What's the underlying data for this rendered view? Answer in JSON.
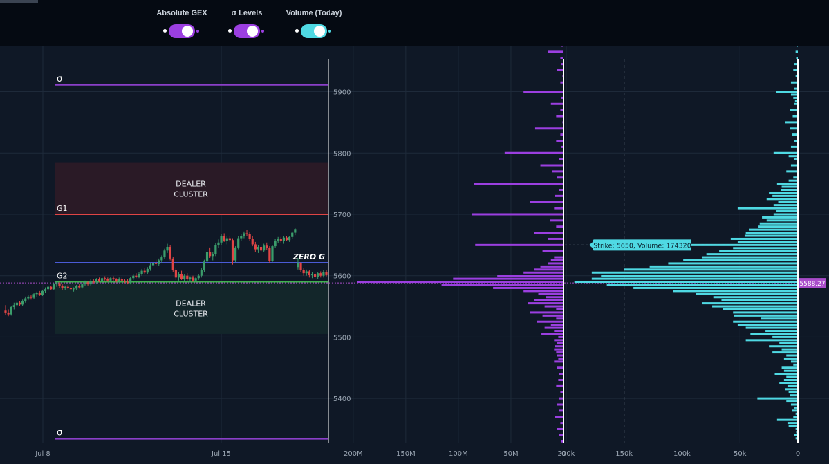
{
  "toggles": [
    {
      "label": "Absolute GEX",
      "color": "#9b3fe0",
      "on": true
    },
    {
      "label": "σ Levels",
      "color": "#9b3fe0",
      "on": true
    },
    {
      "label": "Volume (Today)",
      "color": "#4fd9e3",
      "on": true
    }
  ],
  "colors": {
    "gex": "#9b3fe0",
    "volume": "#4fd9e3",
    "up_candle": "#3b9c6b",
    "down_candle": "#e04545",
    "sigma": "#8a3fc8",
    "g1": "#e04545",
    "g2": "#3fb24f",
    "zero_g": "#4a5bd6",
    "price_marker": "#a94cc9"
  },
  "chart_data": [
    {
      "type": "candlestick",
      "x_ticks": [
        "Jul 8",
        "Jul 15"
      ],
      "price_ticks": [
        5400,
        5500,
        5600,
        5700,
        5800,
        5900
      ],
      "ylim": [
        5328,
        5975
      ],
      "levels": [
        {
          "label": "σ",
          "value": 5911
        },
        {
          "label": "G1",
          "value": 5700
        },
        {
          "label": "ZERO G",
          "value": 5621
        },
        {
          "label": "G2",
          "value": 5590
        },
        {
          "label": "σ",
          "value": 5334
        }
      ],
      "zones": [
        {
          "label": "DEALER\nCLUSTER",
          "from": 5700,
          "to": 5785,
          "kind": "resistance"
        },
        {
          "label": "DEALER\nCLUSTER",
          "from": 5505,
          "to": 5590,
          "kind": "support"
        }
      ],
      "candles": [
        [
          5543,
          5552,
          5536,
          5540
        ],
        [
          5540,
          5545,
          5534,
          5537
        ],
        [
          5537,
          5551,
          5535,
          5549
        ],
        [
          5549,
          5556,
          5545,
          5552
        ],
        [
          5552,
          5560,
          5549,
          5556
        ],
        [
          5556,
          5559,
          5551,
          5553
        ],
        [
          5553,
          5561,
          5551,
          5559
        ],
        [
          5559,
          5566,
          5556,
          5563
        ],
        [
          5563,
          5569,
          5560,
          5566
        ],
        [
          5566,
          5568,
          5561,
          5564
        ],
        [
          5564,
          5572,
          5562,
          5570
        ],
        [
          5570,
          5574,
          5566,
          5572
        ],
        [
          5572,
          5575,
          5567,
          5569
        ],
        [
          5569,
          5577,
          5567,
          5575
        ],
        [
          5575,
          5581,
          5572,
          5578
        ],
        [
          5578,
          5584,
          5575,
          5582
        ],
        [
          5582,
          5583,
          5576,
          5578
        ],
        [
          5578,
          5588,
          5576,
          5586
        ],
        [
          5586,
          5591,
          5582,
          5588
        ],
        [
          5588,
          5590,
          5580,
          5583
        ],
        [
          5583,
          5586,
          5577,
          5580
        ],
        [
          5580,
          5584,
          5576,
          5582
        ],
        [
          5582,
          5585,
          5578,
          5580
        ],
        [
          5580,
          5583,
          5576,
          5578
        ],
        [
          5578,
          5581,
          5574,
          5579
        ],
        [
          5579,
          5585,
          5577,
          5583
        ],
        [
          5583,
          5586,
          5579,
          5581
        ],
        [
          5581,
          5588,
          5579,
          5586
        ],
        [
          5586,
          5592,
          5583,
          5589
        ],
        [
          5589,
          5591,
          5584,
          5586
        ],
        [
          5586,
          5594,
          5584,
          5591
        ],
        [
          5591,
          5595,
          5587,
          5589
        ],
        [
          5589,
          5596,
          5587,
          5594
        ],
        [
          5594,
          5597,
          5589,
          5591
        ],
        [
          5591,
          5598,
          5589,
          5596
        ],
        [
          5596,
          5599,
          5592,
          5594
        ],
        [
          5594,
          5597,
          5590,
          5592
        ],
        [
          5592,
          5598,
          5590,
          5596
        ],
        [
          5596,
          5599,
          5592,
          5594
        ],
        [
          5594,
          5596,
          5589,
          5591
        ],
        [
          5591,
          5597,
          5589,
          5595
        ],
        [
          5595,
          5597,
          5590,
          5592
        ],
        [
          5592,
          5595,
          5588,
          5590
        ],
        [
          5590,
          5594,
          5586,
          5588
        ],
        [
          5588,
          5598,
          5586,
          5596
        ],
        [
          5596,
          5603,
          5593,
          5600
        ],
        [
          5600,
          5604,
          5596,
          5598
        ],
        [
          5598,
          5606,
          5596,
          5603
        ],
        [
          5603,
          5611,
          5600,
          5608
        ],
        [
          5608,
          5612,
          5603,
          5605
        ],
        [
          5605,
          5614,
          5603,
          5611
        ],
        [
          5611,
          5620,
          5608,
          5617
        ],
        [
          5617,
          5624,
          5613,
          5621
        ],
        [
          5621,
          5626,
          5616,
          5619
        ],
        [
          5619,
          5628,
          5616,
          5625
        ],
        [
          5625,
          5633,
          5621,
          5630
        ],
        [
          5630,
          5644,
          5627,
          5641
        ],
        [
          5641,
          5652,
          5637,
          5647
        ],
        [
          5647,
          5650,
          5625,
          5628
        ],
        [
          5628,
          5631,
          5606,
          5609
        ],
        [
          5609,
          5612,
          5593,
          5597
        ],
        [
          5597,
          5606,
          5592,
          5603
        ],
        [
          5603,
          5608,
          5593,
          5595
        ],
        [
          5595,
          5603,
          5591,
          5600
        ],
        [
          5600,
          5604,
          5592,
          5594
        ],
        [
          5594,
          5599,
          5589,
          5597
        ],
        [
          5597,
          5600,
          5590,
          5592
        ],
        [
          5592,
          5598,
          5589,
          5596
        ],
        [
          5596,
          5603,
          5593,
          5600
        ],
        [
          5600,
          5612,
          5597,
          5609
        ],
        [
          5609,
          5626,
          5606,
          5623
        ],
        [
          5623,
          5643,
          5619,
          5639
        ],
        [
          5639,
          5646,
          5629,
          5632
        ],
        [
          5632,
          5638,
          5625,
          5635
        ],
        [
          5635,
          5653,
          5632,
          5650
        ],
        [
          5650,
          5659,
          5645,
          5654
        ],
        [
          5654,
          5668,
          5650,
          5665
        ],
        [
          5665,
          5669,
          5655,
          5657
        ],
        [
          5657,
          5664,
          5651,
          5661
        ],
        [
          5661,
          5665,
          5655,
          5658
        ],
        [
          5658,
          5661,
          5618,
          5625
        ],
        [
          5625,
          5648,
          5622,
          5646
        ],
        [
          5646,
          5664,
          5643,
          5661
        ],
        [
          5661,
          5668,
          5656,
          5664
        ],
        [
          5664,
          5672,
          5661,
          5669
        ],
        [
          5669,
          5675,
          5664,
          5668
        ],
        [
          5668,
          5671,
          5657,
          5660
        ],
        [
          5660,
          5664,
          5648,
          5651
        ],
        [
          5651,
          5655,
          5639,
          5643
        ],
        [
          5643,
          5650,
          5637,
          5647
        ],
        [
          5647,
          5650,
          5638,
          5641
        ],
        [
          5641,
          5652,
          5639,
          5649
        ],
        [
          5649,
          5654,
          5642,
          5645
        ],
        [
          5645,
          5648,
          5620,
          5624
        ],
        [
          5624,
          5650,
          5622,
          5648
        ],
        [
          5648,
          5660,
          5645,
          5657
        ],
        [
          5657,
          5663,
          5653,
          5660
        ],
        [
          5660,
          5663,
          5654,
          5656
        ],
        [
          5656,
          5664,
          5652,
          5662
        ],
        [
          5662,
          5665,
          5656,
          5658
        ],
        [
          5658,
          5665,
          5655,
          5663
        ],
        [
          5663,
          5672,
          5660,
          5670
        ],
        [
          5670,
          5678,
          5666,
          5676
        ],
        [
          5614,
          5629,
          5610,
          5620
        ],
        [
          5620,
          5622,
          5606,
          5609
        ],
        [
          5609,
          5612,
          5600,
          5604
        ],
        [
          5604,
          5610,
          5600,
          5607
        ],
        [
          5607,
          5609,
          5597,
          5601
        ],
        [
          5601,
          5606,
          5596,
          5603
        ],
        [
          5603,
          5605,
          5595,
          5598
        ],
        [
          5598,
          5606,
          5595,
          5604
        ],
        [
          5604,
          5607,
          5597,
          5600
        ],
        [
          5600,
          5609,
          5597,
          5606
        ],
        [
          5606,
          5609,
          5599,
          5602
        ]
      ]
    },
    {
      "type": "bar",
      "orientation": "horizontal",
      "name": "Absolute GEX",
      "price_ticks": [
        5400,
        5500,
        5600,
        5700,
        5800,
        5900
      ],
      "xlim": [
        215000000,
        0
      ],
      "x_ticks": [
        "200M",
        "150M",
        "100M",
        "50M",
        "0"
      ],
      "strikes": [
        5975,
        5965,
        5955,
        5945,
        5935,
        5925,
        5915,
        5900,
        5890,
        5880,
        5870,
        5860,
        5850,
        5840,
        5830,
        5820,
        5810,
        5800,
        5790,
        5780,
        5770,
        5760,
        5750,
        5740,
        5730,
        5720,
        5710,
        5700,
        5690,
        5680,
        5670,
        5660,
        5650,
        5640,
        5630,
        5625,
        5620,
        5615,
        5610,
        5605,
        5600,
        5595,
        5590,
        5585,
        5580,
        5575,
        5570,
        5565,
        5560,
        5555,
        5550,
        5545,
        5540,
        5535,
        5530,
        5525,
        5520,
        5515,
        5510,
        5505,
        5500,
        5495,
        5490,
        5485,
        5480,
        5475,
        5470,
        5465,
        5460,
        5450,
        5440,
        5430,
        5420,
        5410,
        5400,
        5390,
        5380,
        5370,
        5360,
        5350,
        5340,
        5330
      ],
      "values": [
        2000000,
        15000000,
        3000000,
        2000000,
        6000000,
        1000000,
        3000000,
        38000000,
        2000000,
        12000000,
        3000000,
        7000000,
        1000000,
        27000000,
        3000000,
        7000000,
        2000000,
        56000000,
        4000000,
        22000000,
        11000000,
        6000000,
        85000000,
        4000000,
        8000000,
        32000000,
        9000000,
        87000000,
        13000000,
        7000000,
        28000000,
        15000000,
        84000000,
        20000000,
        9000000,
        12000000,
        15000000,
        22000000,
        28000000,
        38000000,
        63000000,
        105000000,
        196000000,
        116000000,
        67000000,
        38000000,
        24000000,
        17000000,
        28000000,
        34000000,
        18000000,
        7000000,
        32000000,
        20000000,
        7000000,
        25000000,
        12000000,
        18000000,
        9000000,
        21000000,
        5000000,
        9000000,
        6000000,
        8000000,
        9000000,
        7000000,
        6000000,
        5000000,
        9000000,
        6000000,
        4000000,
        5000000,
        7000000,
        3000000,
        4000000,
        6000000,
        4000000,
        8000000,
        3000000,
        6000000,
        4000000,
        2000000
      ],
      "current_price": 5588.27
    },
    {
      "type": "bar",
      "orientation": "horizontal",
      "name": "Volume (Today)",
      "price_ticks": [
        5400,
        5500,
        5600,
        5700,
        5800,
        5900
      ],
      "xlim": [
        200000,
        0
      ],
      "x_ticks": [
        "200k",
        "150k",
        "100k",
        "50k",
        "0"
      ],
      "strikes": [
        5975,
        5965,
        5955,
        5945,
        5935,
        5925,
        5915,
        5905,
        5900,
        5895,
        5890,
        5885,
        5880,
        5870,
        5860,
        5850,
        5840,
        5830,
        5820,
        5810,
        5800,
        5795,
        5790,
        5780,
        5770,
        5760,
        5755,
        5750,
        5745,
        5740,
        5735,
        5730,
        5725,
        5720,
        5715,
        5710,
        5705,
        5700,
        5695,
        5690,
        5685,
        5680,
        5675,
        5670,
        5665,
        5660,
        5655,
        5650,
        5645,
        5640,
        5635,
        5630,
        5625,
        5620,
        5615,
        5610,
        5605,
        5600,
        5595,
        5590,
        5585,
        5580,
        5575,
        5570,
        5565,
        5560,
        5555,
        5550,
        5545,
        5540,
        5535,
        5530,
        5525,
        5520,
        5515,
        5510,
        5505,
        5500,
        5495,
        5490,
        5485,
        5480,
        5475,
        5470,
        5465,
        5460,
        5455,
        5450,
        5445,
        5440,
        5435,
        5430,
        5425,
        5420,
        5415,
        5410,
        5405,
        5400,
        5395,
        5390,
        5385,
        5380,
        5375,
        5370,
        5365,
        5360,
        5355,
        5350,
        5345,
        5340,
        5335,
        5330
      ],
      "values": [
        1000,
        2000,
        1500,
        3000,
        4000,
        2000,
        6000,
        3000,
        19000,
        6000,
        4000,
        2500,
        3000,
        7000,
        4500,
        11000,
        7000,
        5000,
        3000,
        6000,
        21000,
        8000,
        3000,
        6000,
        10000,
        4000,
        8000,
        18000,
        14000,
        14500,
        25000,
        22000,
        27000,
        17000,
        21000,
        52000,
        19000,
        21000,
        31000,
        27000,
        33000,
        34000,
        42000,
        45000,
        46000,
        58000,
        52000,
        174000,
        56000,
        68000,
        79000,
        83000,
        99000,
        112000,
        128000,
        150000,
        178000,
        170000,
        178000,
        193000,
        165000,
        142000,
        108000,
        88000,
        73000,
        66000,
        83000,
        74000,
        65000,
        56000,
        55000,
        32000,
        56000,
        52000,
        45000,
        28000,
        41000,
        22000,
        45000,
        16000,
        25000,
        14000,
        22000,
        10000,
        12000,
        6000,
        4000,
        14000,
        12000,
        20000,
        10000,
        12000,
        16000,
        9000,
        11000,
        8000,
        7000,
        35000,
        10000,
        6000,
        3000,
        5000,
        2000,
        4000,
        18000,
        9000,
        8000,
        2000,
        1500,
        3000,
        2000,
        1000
      ],
      "annotation": "Strike: 5650, Volume: 174320"
    }
  ]
}
